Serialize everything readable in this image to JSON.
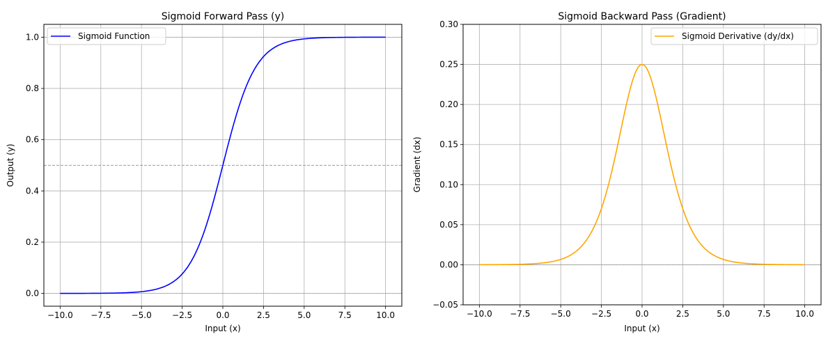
{
  "chart_data": [
    {
      "type": "line",
      "title": "Sigmoid Forward Pass (y)",
      "xlabel": "Input (x)",
      "ylabel": "Output (y)",
      "xlim": [
        -11.0,
        11.0
      ],
      "ylim": [
        -0.05,
        1.05
      ],
      "xticks": [
        -10.0,
        -7.5,
        -5.0,
        -2.5,
        0.0,
        2.5,
        5.0,
        7.5,
        10.0
      ],
      "xtick_labels": [
        "−10.0",
        "−7.5",
        "−5.0",
        "−2.5",
        "0.0",
        "2.5",
        "5.0",
        "7.5",
        "10.0"
      ],
      "yticks": [
        0.0,
        0.2,
        0.4,
        0.6,
        0.8,
        1.0
      ],
      "ytick_labels": [
        "0.0",
        "0.2",
        "0.4",
        "0.6",
        "0.8",
        "1.0"
      ],
      "grid": true,
      "legend_position": "upper-left",
      "reference_lines": [
        {
          "y": 0.0,
          "style": "dotted",
          "color": "#808080"
        },
        {
          "y": 0.5,
          "style": "dashed",
          "color": "#808080"
        },
        {
          "y": 1.0,
          "style": "dotted",
          "color": "#808080"
        }
      ],
      "series": [
        {
          "name": "Sigmoid Function",
          "color": "#0000ff",
          "x": [
            -10,
            -9,
            -8,
            -7,
            -6,
            -5,
            -4,
            -3.5,
            -3,
            -2.5,
            -2,
            -1.5,
            -1,
            -0.5,
            0,
            0.5,
            1,
            1.5,
            2,
            2.5,
            3,
            3.5,
            4,
            5,
            6,
            7,
            8,
            9,
            10
          ],
          "y": [
            0.0,
            0.0001,
            0.0003,
            0.0009,
            0.0025,
            0.0067,
            0.018,
            0.0293,
            0.0474,
            0.0759,
            0.1192,
            0.1824,
            0.2689,
            0.3775,
            0.5,
            0.6225,
            0.7311,
            0.8176,
            0.8808,
            0.9241,
            0.9526,
            0.9707,
            0.982,
            0.9933,
            0.9975,
            0.9991,
            0.9997,
            0.9999,
            1.0
          ]
        }
      ]
    },
    {
      "type": "line",
      "title": "Sigmoid Backward Pass (Gradient)",
      "xlabel": "Input (x)",
      "ylabel": "Gradient (dx)",
      "xlim": [
        -11.0,
        11.0
      ],
      "ylim": [
        -0.05,
        0.3
      ],
      "xticks": [
        -10.0,
        -7.5,
        -5.0,
        -2.5,
        0.0,
        2.5,
        5.0,
        7.5,
        10.0
      ],
      "xtick_labels": [
        "−10.0",
        "−7.5",
        "−5.0",
        "−2.5",
        "0.0",
        "2.5",
        "5.0",
        "7.5",
        "10.0"
      ],
      "yticks": [
        -0.05,
        0.0,
        0.05,
        0.1,
        0.15,
        0.2,
        0.25,
        0.3
      ],
      "ytick_labels": [
        "−0.05",
        "0.00",
        "0.05",
        "0.10",
        "0.15",
        "0.20",
        "0.25",
        "0.30"
      ],
      "grid": true,
      "legend_position": "upper-right",
      "reference_lines": [
        {
          "y": 0.0,
          "style": "dotted",
          "color": "#808080"
        }
      ],
      "series": [
        {
          "name": "Sigmoid Derivative (dy/dx)",
          "color": "#ffa500",
          "x": [
            -10,
            -9,
            -8,
            -7,
            -6,
            -5,
            -4,
            -3.5,
            -3,
            -2.5,
            -2,
            -1.5,
            -1,
            -0.5,
            0,
            0.5,
            1,
            1.5,
            2,
            2.5,
            3,
            3.5,
            4,
            5,
            6,
            7,
            8,
            9,
            10
          ],
          "y": [
            0.0,
            0.0001,
            0.0003,
            0.0009,
            0.0025,
            0.0066,
            0.0177,
            0.0285,
            0.0452,
            0.0701,
            0.105,
            0.1491,
            0.1966,
            0.235,
            0.25,
            0.235,
            0.1966,
            0.1491,
            0.105,
            0.0701,
            0.0452,
            0.0285,
            0.0177,
            0.0066,
            0.0025,
            0.0009,
            0.0003,
            0.0001,
            0.0
          ]
        }
      ]
    }
  ]
}
